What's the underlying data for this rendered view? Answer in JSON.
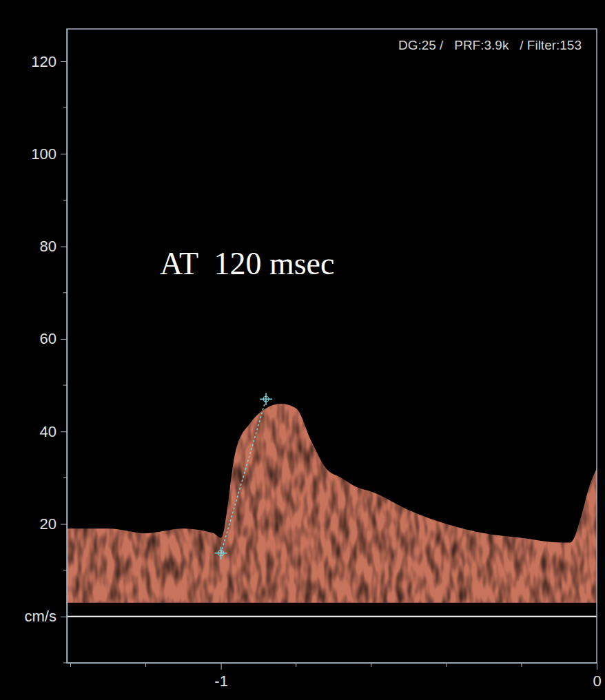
{
  "chart_data": {
    "type": "area",
    "subtitle": "DG:25 /   PRF:3.9k   / Filter:153",
    "annotation": "AT  120 msec",
    "color": "#c8735c",
    "x": [
      -1.42,
      -1.3,
      -1.2,
      -1.1,
      -1.02,
      -1.0,
      -0.96,
      -0.92,
      -0.88,
      -0.84,
      -0.8,
      -0.76,
      -0.72,
      -0.68,
      -0.64,
      -0.6,
      -0.5,
      -0.4,
      -0.3,
      -0.2,
      -0.1,
      -0.07,
      -0.04,
      -0.02,
      0.0
    ],
    "values": [
      19,
      19,
      18,
      19,
      18,
      17,
      36,
      42,
      45,
      46,
      45,
      38,
      32,
      30,
      28,
      27,
      23,
      20,
      18,
      17,
      16,
      16,
      22,
      28,
      32
    ],
    "lower": [
      3,
      3,
      3,
      3,
      3,
      3,
      3,
      3,
      3,
      3,
      3,
      3,
      3,
      3,
      3,
      3,
      3,
      3,
      3,
      3,
      3,
      3,
      3,
      3,
      3
    ],
    "caliper": {
      "x": [
        -1.0,
        -0.88
      ],
      "y": [
        13.7,
        47
      ],
      "color": "#7fd6da"
    },
    "xlim": [
      -1.41,
      0
    ],
    "xticks": [
      -1,
      0
    ],
    "xminorticks": [
      -1.4,
      -1.2,
      -0.8,
      -0.6,
      -0.4,
      -0.2
    ],
    "ylim": [
      -10,
      127
    ],
    "yticks": [
      {
        "value": 0,
        "label": "cm/s"
      },
      20,
      40,
      60,
      80,
      100,
      120
    ],
    "yminorticks": [
      -10,
      10,
      30,
      50,
      70,
      90,
      110
    ],
    "grid": false
  }
}
